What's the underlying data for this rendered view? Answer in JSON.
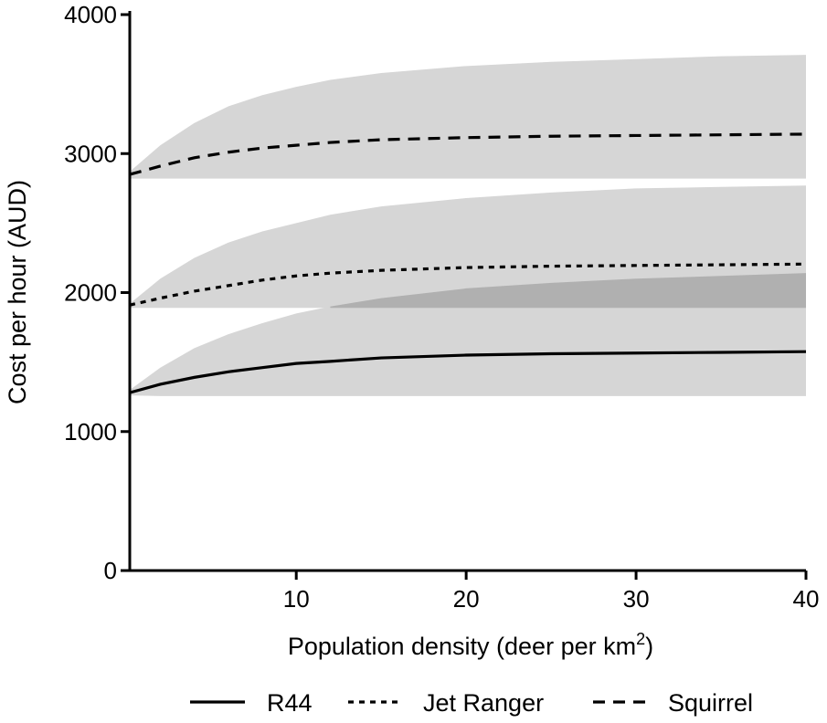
{
  "chart_data": {
    "type": "line",
    "xlabel": "Population density (deer per km",
    "xlabel_superscript": "2",
    "xlabel_suffix": ")",
    "ylabel": "Cost per hour (AUD)",
    "xlim": [
      0.2,
      40
    ],
    "ylim": [
      0,
      4000
    ],
    "xticks": [
      "10",
      "20",
      "30",
      "40"
    ],
    "yticks": [
      "0",
      "1000",
      "2000",
      "3000",
      "4000"
    ],
    "xtick_values": [
      10,
      20,
      30,
      40
    ],
    "ytick_values": [
      0,
      1000,
      2000,
      3000,
      4000
    ],
    "grid": false,
    "legend_position": "bottom",
    "band_color": "#d6d6d6",
    "overlap_color": "#b0b0b0",
    "line_color": "#000000",
    "series": [
      {
        "name": "R44",
        "dash": "solid",
        "x": [
          0.2,
          2,
          4,
          6,
          8,
          10,
          12,
          15,
          20,
          25,
          30,
          35,
          40
        ],
        "mean": [
          1280,
          1340,
          1390,
          1430,
          1460,
          1490,
          1505,
          1530,
          1550,
          1560,
          1565,
          1570,
          1575
        ],
        "lower": [
          1260,
          1255,
          1255,
          1255,
          1255,
          1255,
          1255,
          1255,
          1255,
          1255,
          1255,
          1255,
          1255
        ],
        "upper": [
          1300,
          1460,
          1600,
          1700,
          1780,
          1850,
          1900,
          1960,
          2030,
          2070,
          2100,
          2120,
          2140
        ]
      },
      {
        "name": "Jet Ranger",
        "dash": "dotted",
        "x": [
          0.2,
          2,
          4,
          6,
          8,
          10,
          12,
          15,
          20,
          25,
          30,
          35,
          40
        ],
        "mean": [
          1910,
          1960,
          2010,
          2050,
          2090,
          2120,
          2140,
          2160,
          2180,
          2190,
          2195,
          2200,
          2205
        ],
        "lower": [
          1890,
          1890,
          1890,
          1890,
          1890,
          1890,
          1890,
          1890,
          1890,
          1890,
          1890,
          1890,
          1890
        ],
        "upper": [
          1920,
          2100,
          2250,
          2360,
          2440,
          2500,
          2560,
          2620,
          2680,
          2720,
          2750,
          2760,
          2770
        ]
      },
      {
        "name": "Squirrel",
        "dash": "dashed",
        "x": [
          0.2,
          2,
          4,
          6,
          8,
          10,
          12,
          15,
          20,
          25,
          30,
          35,
          40
        ],
        "mean": [
          2850,
          2910,
          2970,
          3010,
          3040,
          3060,
          3080,
          3100,
          3115,
          3125,
          3130,
          3135,
          3140
        ],
        "lower": [
          2820,
          2820,
          2820,
          2820,
          2820,
          2820,
          2820,
          2820,
          2820,
          2820,
          2820,
          2820,
          2820
        ],
        "upper": [
          2870,
          3060,
          3220,
          3340,
          3420,
          3480,
          3530,
          3580,
          3630,
          3660,
          3680,
          3700,
          3710
        ]
      }
    ]
  }
}
